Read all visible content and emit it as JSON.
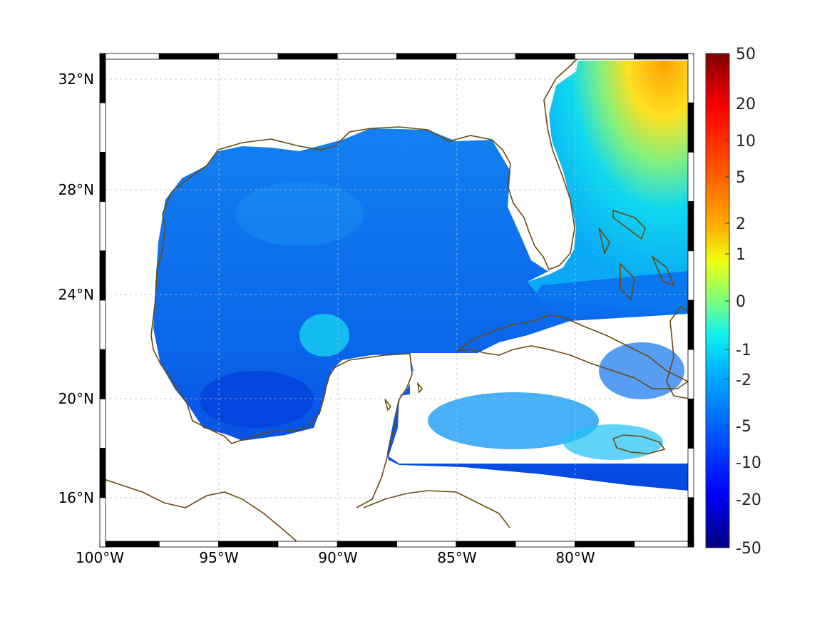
{
  "map": {
    "type": "heatmap",
    "projection": "equirectangular",
    "lon_range": [
      -100,
      -75
    ],
    "lat_range": [
      14.3,
      33
    ],
    "x_ticks": [
      "100°W",
      "95°W",
      "90°W",
      "85°W",
      "80°W"
    ],
    "y_ticks": [
      "32°N",
      "28°N",
      "24°N",
      "20°N",
      "16°N"
    ],
    "grid": true,
    "frame": "black-white checkered border",
    "coastline_color": "#6b4a10",
    "land_color": "#ffffff"
  },
  "colorbar": {
    "colormap": "jet",
    "orientation": "vertical",
    "placement": "right",
    "tick_labels": [
      "50",
      "20",
      "10",
      "5",
      "2",
      "1",
      "0",
      "-1",
      "-2",
      "-5",
      "-10",
      "-20",
      "-50"
    ],
    "ticks": [
      50,
      20,
      10,
      5,
      2,
      1,
      0,
      -1,
      -2,
      -5,
      -10,
      -20,
      -50
    ],
    "range": [
      -50,
      50
    ]
  },
  "chart_data": {
    "type": "heatmap",
    "xlabel": "",
    "ylabel": "",
    "x_ticks": [
      "100°W",
      "95°W",
      "90°W",
      "85°W",
      "80°W"
    ],
    "y_ticks": [
      "32°N",
      "28°N",
      "24°N",
      "20°N",
      "16°N"
    ],
    "colorbar_range": [
      -50,
      50
    ],
    "approx_values": [
      {
        "region": "Gulf of Mexico interior",
        "value": -6
      },
      {
        "region": "Bay of Campeche",
        "value": -10
      },
      {
        "region": "Atlantic off Carolinas",
        "value": 2
      },
      {
        "region": "Atlantic east of Florida",
        "value": -2
      },
      {
        "region": "Caribbean Sea",
        "value": -4
      }
    ]
  }
}
